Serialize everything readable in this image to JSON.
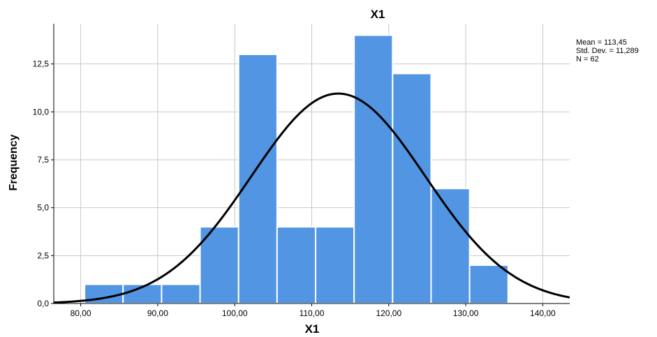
{
  "chart_data": {
    "type": "bar",
    "title": "X1",
    "xlabel": "X1",
    "ylabel": "Frequency",
    "xlim": [
      76.5,
      143.5
    ],
    "ylim": [
      0,
      14.6
    ],
    "x_ticks": [
      80,
      90,
      100,
      110,
      120,
      130,
      140
    ],
    "x_tick_labels": [
      "80,00",
      "90,00",
      "100,00",
      "110,00",
      "120,00",
      "130,00",
      "140,00"
    ],
    "y_ticks": [
      0,
      2.5,
      5,
      7.5,
      10,
      12.5
    ],
    "y_tick_labels": [
      "0,0",
      "2,5",
      "5,0",
      "7,5",
      "10,0",
      "12,5"
    ],
    "grid": true,
    "bins": [
      {
        "start": 80.5,
        "end": 85.5,
        "count": 1
      },
      {
        "start": 85.5,
        "end": 90.5,
        "count": 1
      },
      {
        "start": 90.5,
        "end": 95.5,
        "count": 1
      },
      {
        "start": 95.5,
        "end": 100.5,
        "count": 4
      },
      {
        "start": 100.5,
        "end": 105.5,
        "count": 13
      },
      {
        "start": 105.5,
        "end": 110.5,
        "count": 4
      },
      {
        "start": 110.5,
        "end": 115.5,
        "count": 4
      },
      {
        "start": 115.5,
        "end": 120.5,
        "count": 14
      },
      {
        "start": 120.5,
        "end": 125.5,
        "count": 12
      },
      {
        "start": 125.5,
        "end": 130.5,
        "count": 6
      },
      {
        "start": 130.5,
        "end": 135.5,
        "count": 2
      }
    ],
    "normal_curve": {
      "mean": 113.45,
      "std": 11.289,
      "n": 62,
      "bin_width": 5
    },
    "stats": {
      "mean": "Mean = 113,45",
      "std": "Std. Dev. = 11,289",
      "n": "N = 62"
    },
    "stats_position": "top-right",
    "colors": {
      "bar": "#5195e3",
      "curve": "#000000",
      "grid": "#c8c8c8"
    }
  }
}
